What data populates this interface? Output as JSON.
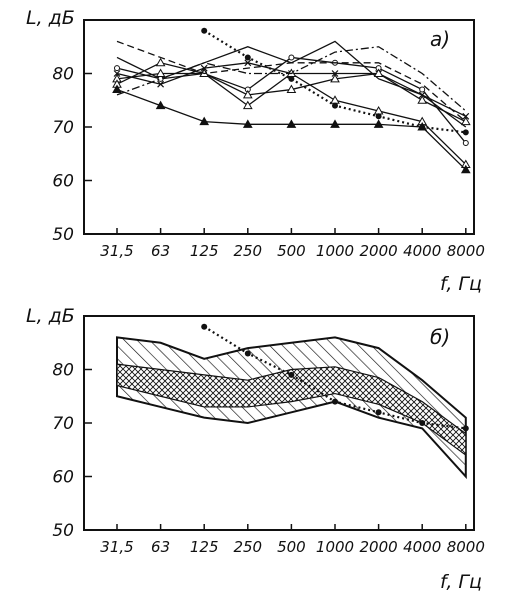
{
  "page": {
    "background": "#ffffff",
    "ink": "#111111"
  },
  "chart_data": [
    {
      "type": "line",
      "panel_label": "а)",
      "ylabel": "L, дБ",
      "xlabel": "f, Гц",
      "categories": [
        "31,5",
        "63",
        "125",
        "250",
        "500",
        "1000",
        "2000",
        "4000",
        "8000"
      ],
      "yticks": [
        "50",
        "60",
        "70",
        "80"
      ],
      "ylim": [
        50,
        90
      ],
      "grid": false,
      "series": [
        {
          "values": [
            83,
            79,
            82,
            85,
            82,
            86,
            79,
            76,
            70
          ],
          "style": "solid",
          "marker": "none"
        },
        {
          "values": [
            81,
            79,
            80,
            77,
            83,
            82,
            81,
            77,
            67
          ],
          "style": "solid",
          "marker": "circle"
        },
        {
          "values": [
            80,
            78,
            81,
            82,
            80,
            80,
            80,
            76,
            72
          ],
          "style": "solid",
          "marker": "cross"
        },
        {
          "values": [
            79,
            80,
            80,
            76,
            77,
            79,
            80,
            75,
            71
          ],
          "style": "solid",
          "marker": "triangle-open"
        },
        {
          "values": [
            78,
            82,
            80,
            74,
            80,
            75,
            73,
            71,
            63
          ],
          "style": "solid",
          "marker": "triangle-open"
        },
        {
          "values": [
            77,
            74,
            71,
            70.5,
            70.5,
            70.5,
            70.5,
            70,
            62
          ],
          "style": "solid",
          "marker": "triangle"
        },
        {
          "values": [
            76,
            79,
            82,
            80,
            80,
            84,
            85,
            80,
            73
          ],
          "style": "dash-dot",
          "marker": "none"
        },
        {
          "values": [
            86,
            83,
            80,
            81,
            82,
            82,
            82,
            78,
            71
          ],
          "style": "dashed",
          "marker": "none"
        },
        {
          "values": [
            null,
            null,
            88,
            83,
            79,
            74,
            72,
            70,
            69
          ],
          "style": "dotted",
          "marker": "dot"
        }
      ]
    },
    {
      "type": "area",
      "panel_label": "б)",
      "ylabel": "L, дБ",
      "xlabel": "f, Гц",
      "categories": [
        "31,5",
        "63",
        "125",
        "250",
        "500",
        "1000",
        "2000",
        "4000",
        "8000"
      ],
      "yticks": [
        "50",
        "60",
        "70",
        "80"
      ],
      "ylim": [
        50,
        90
      ],
      "grid": false,
      "outer_band": {
        "upper": [
          86,
          85,
          82,
          84,
          85,
          86,
          84,
          78,
          71
        ],
        "lower": [
          75,
          73,
          71,
          70,
          72,
          74,
          71,
          69,
          60
        ]
      },
      "inner_band": {
        "upper": [
          81,
          80,
          79,
          78,
          80,
          80.5,
          78.5,
          74,
          68
        ],
        "lower": [
          77,
          75,
          73,
          73,
          74,
          75.5,
          73.5,
          70,
          64
        ]
      },
      "series": [
        {
          "values": [
            null,
            null,
            88,
            83,
            79,
            74,
            72,
            70,
            69
          ],
          "style": "dotted",
          "marker": "dot"
        }
      ]
    }
  ]
}
